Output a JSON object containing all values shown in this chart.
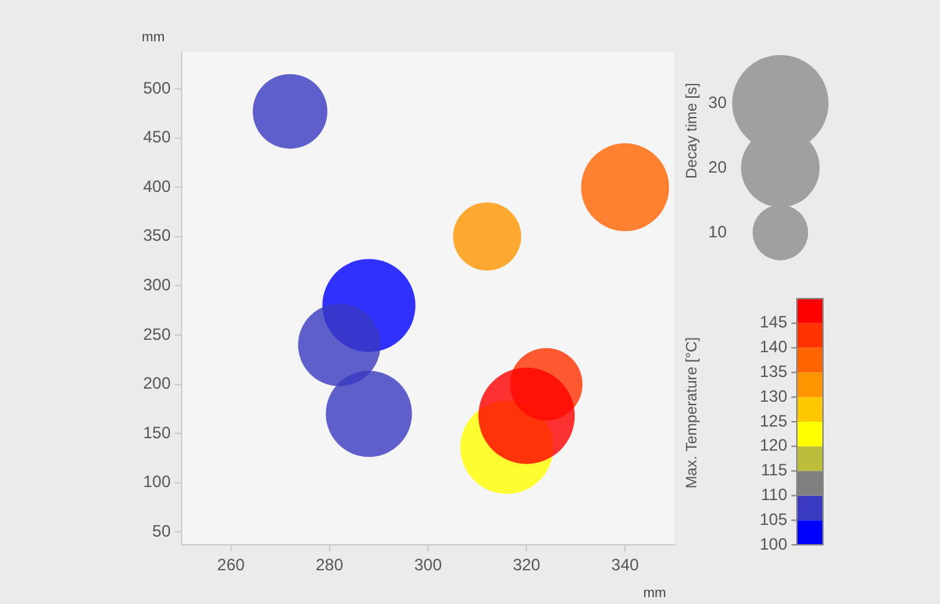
{
  "chart_data": {
    "type": "bubble",
    "xlabel": "mm",
    "ylabel": "mm",
    "legend_title": "Decay time [s]",
    "clabel": "Max. Temperature [°C]",
    "x": [
      272,
      340,
      312,
      288,
      282,
      288,
      316,
      324,
      320
    ],
    "values": [
      477,
      400,
      350,
      280,
      240,
      170,
      136,
      200,
      168
    ],
    "sizes": [
      18,
      25,
      15,
      28,
      22,
      24,
      28,
      17,
      30
    ],
    "cvalues": [
      107,
      137,
      132,
      102,
      107,
      107,
      122,
      142,
      147
    ],
    "size_legend": [
      10,
      20,
      30
    ],
    "clim": [
      100,
      150
    ],
    "cticks": [
      100,
      105,
      110,
      115,
      120,
      125,
      130,
      135,
      140,
      145
    ],
    "xlim": [
      250,
      350
    ],
    "xticks": [
      260,
      280,
      300,
      320,
      340
    ],
    "ylim": [
      37,
      537
    ],
    "yticks": [
      50,
      100,
      150,
      200,
      250,
      300,
      350,
      400,
      450,
      500
    ],
    "grid": false
  }
}
